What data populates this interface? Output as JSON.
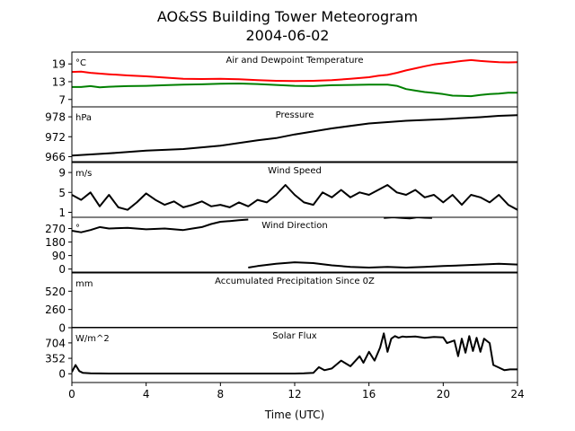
{
  "page": {
    "title_line1": "AO&SS Building Tower Meteorogram",
    "title_line2": "2004-06-02"
  },
  "colors": {
    "temperature": "#ff0000",
    "dewpoint": "#008000",
    "series": "#000000"
  },
  "chart_data": {
    "type": "line",
    "title": "AO&SS Building Tower Meteorogram 2004-06-02",
    "xlabel": "Time (UTC)",
    "xlim": [
      0,
      24
    ],
    "xticks": [
      0,
      4,
      8,
      12,
      16,
      20,
      24
    ],
    "panels": [
      {
        "title": "Air and Dewpoint Temperature",
        "unit": "°C",
        "ylim": [
          4.5,
          23
        ],
        "yticks": [
          7,
          13,
          19
        ],
        "series": [
          {
            "color": "#ff0000",
            "x": [
              0,
              0.5,
              1,
              2,
              3,
              4,
              5,
              6,
              7,
              8,
              9,
              10,
              11,
              12,
              13,
              14,
              15,
              16,
              16.5,
              17,
              17.5,
              18,
              18.5,
              19,
              19.5,
              20,
              20.5,
              21,
              21.5,
              22,
              22.5,
              23,
              23.5,
              24
            ],
            "y": [
              16.3,
              16.4,
              16,
              15.5,
              15.1,
              14.8,
              14.4,
              14,
              13.9,
              14,
              13.8,
              13.5,
              13.3,
              13.2,
              13.3,
              13.5,
              14,
              14.5,
              15,
              15.3,
              16,
              16.8,
              17.5,
              18.2,
              18.8,
              19.2,
              19.6,
              20,
              20.3,
              20,
              19.8,
              19.6,
              19.5,
              19.6
            ]
          },
          {
            "color": "#008000",
            "x": [
              0,
              0.5,
              1,
              1.5,
              2,
              3,
              4,
              5,
              6,
              7,
              8,
              9,
              10,
              11,
              12,
              13,
              14,
              15,
              16,
              17,
              17.5,
              18,
              18.5,
              19,
              19.5,
              20,
              20.5,
              21,
              21.5,
              22,
              22.5,
              23,
              23.5,
              24
            ],
            "y": [
              11.2,
              11.2,
              11.5,
              11.1,
              11.3,
              11.5,
              11.6,
              11.8,
              12,
              12.1,
              12.3,
              12.4,
              12.2,
              11.9,
              11.6,
              11.5,
              11.8,
              11.9,
              12,
              12,
              11.6,
              10.5,
              10,
              9.5,
              9.2,
              8.8,
              8.3,
              8.2,
              8.1,
              8.5,
              8.8,
              9,
              9.3,
              9.3
            ]
          }
        ]
      },
      {
        "title": "Pressure",
        "unit": "hPa",
        "ylim": [
          964.5,
          981
        ],
        "yticks": [
          966,
          972,
          978
        ],
        "series": [
          {
            "color": "#000000",
            "x": [
              0,
              2,
              4,
              6,
              8,
              10,
              11,
              12,
              13,
              14,
              16,
              18,
              20,
              22,
              23,
              24
            ],
            "y": [
              966.3,
              967,
              967.8,
              968.3,
              969.3,
              970.9,
              971.6,
              972.7,
              973.6,
              974.5,
              976,
              976.8,
              977.3,
              977.9,
              978.3,
              978.5
            ]
          }
        ]
      },
      {
        "title": "Wind Speed",
        "unit": "m/s",
        "ylim": [
          0,
          11
        ],
        "yticks": [
          1,
          5,
          9
        ],
        "series": [
          {
            "color": "#000000",
            "x": [
              0,
              0.5,
              1,
              1.5,
              2,
              2.5,
              3,
              3.5,
              4,
              4.5,
              5,
              5.5,
              6,
              6.5,
              7,
              7.5,
              8,
              8.5,
              9,
              9.5,
              10,
              10.5,
              11,
              11.5,
              12,
              12.5,
              13,
              13.5,
              14,
              14.5,
              15,
              15.5,
              16,
              16.5,
              17,
              17.5,
              18,
              18.5,
              19,
              19.5,
              20,
              20.5,
              21,
              21.5,
              22,
              22.5,
              23,
              23.5,
              24
            ],
            "y": [
              4.5,
              3.5,
              5,
              2.2,
              4.5,
              2,
              1.5,
              3,
              4.8,
              3.5,
              2.5,
              3.2,
              2,
              2.5,
              3.2,
              2.2,
              2.5,
              2,
              3,
              2.2,
              3.5,
              3,
              4.5,
              6.5,
              4.5,
              3,
              2.5,
              5,
              4,
              5.5,
              4,
              5,
              4.5,
              5.5,
              6.5,
              5,
              4.5,
              5.5,
              4,
              4.5,
              3,
              4.5,
              2.5,
              4.5,
              4,
              3,
              4.5,
              2.5,
              1.5
            ]
          }
        ]
      },
      {
        "title": "Wind Direction",
        "unit": "°",
        "ylim": [
          -20,
          345
        ],
        "yticks": [
          0,
          90,
          180,
          270
        ],
        "series": [
          {
            "color": "#000000",
            "x": [
              0,
              0.5,
              1,
              1.5,
              2,
              3,
              4,
              5,
              6,
              6.5,
              7,
              7.5,
              8,
              8.5,
              9,
              9.5
            ],
            "y": [
              255,
              245,
              260,
              280,
              270,
              275,
              265,
              270,
              260,
              270,
              280,
              300,
              315,
              320,
              325,
              330
            ]
          },
          {
            "color": "#000000",
            "x": [
              9.5,
              10,
              11,
              12,
              13,
              14,
              15,
              16,
              17,
              18,
              19,
              20,
              21,
              22,
              23,
              24
            ],
            "y": [
              10,
              20,
              35,
              45,
              40,
              25,
              15,
              10,
              15,
              10,
              15,
              20,
              25,
              30,
              35,
              30
            ]
          },
          {
            "color": "#000000",
            "x": [
              16.8,
              17.3,
              17.8,
              18.2,
              18.6,
              19.0,
              19.4
            ],
            "y": [
              340,
              345,
              340,
              338,
              345,
              342,
              340
            ]
          }
        ]
      },
      {
        "title": "Accumulated Precipitation Since 0Z",
        "unit": "mm",
        "ylim": [
          -0.5,
          780
        ],
        "yticks": [
          0,
          260,
          520
        ],
        "series": [
          {
            "color": "#000000",
            "x": [
              0,
              24
            ],
            "y": [
              0,
              0
            ]
          }
        ]
      },
      {
        "title": "Solar Flux",
        "unit": "W/m^2",
        "ylim": [
          -200,
          1050
        ],
        "yticks": [
          0,
          352,
          704
        ],
        "series": [
          {
            "color": "#000000",
            "x": [
              0,
              0.2,
              0.4,
              0.6,
              1,
              2,
              4,
              6,
              8,
              10,
              12,
              12.5,
              13,
              13.3,
              13.6,
              14,
              14.5,
              15,
              15.5,
              15.7,
              16,
              16.3,
              16.6,
              16.8,
              17,
              17.2,
              17.4,
              17.6,
              17.8,
              18,
              18.5,
              19,
              19.5,
              20,
              20.2,
              20.6,
              20.8,
              21,
              21.2,
              21.4,
              21.6,
              21.8,
              22,
              22.2,
              22.5,
              22.7,
              23,
              23.3,
              23.6,
              24
            ],
            "y": [
              40,
              200,
              60,
              20,
              10,
              5,
              5,
              5,
              5,
              5,
              5,
              10,
              20,
              150,
              80,
              120,
              300,
              170,
              400,
              250,
              500,
              300,
              600,
              920,
              500,
              800,
              860,
              820,
              850,
              840,
              850,
              820,
              840,
              830,
              700,
              760,
              400,
              800,
              480,
              860,
              520,
              820,
              500,
              800,
              700,
              200,
              140,
              80,
              100,
              100
            ]
          }
        ]
      }
    ]
  }
}
